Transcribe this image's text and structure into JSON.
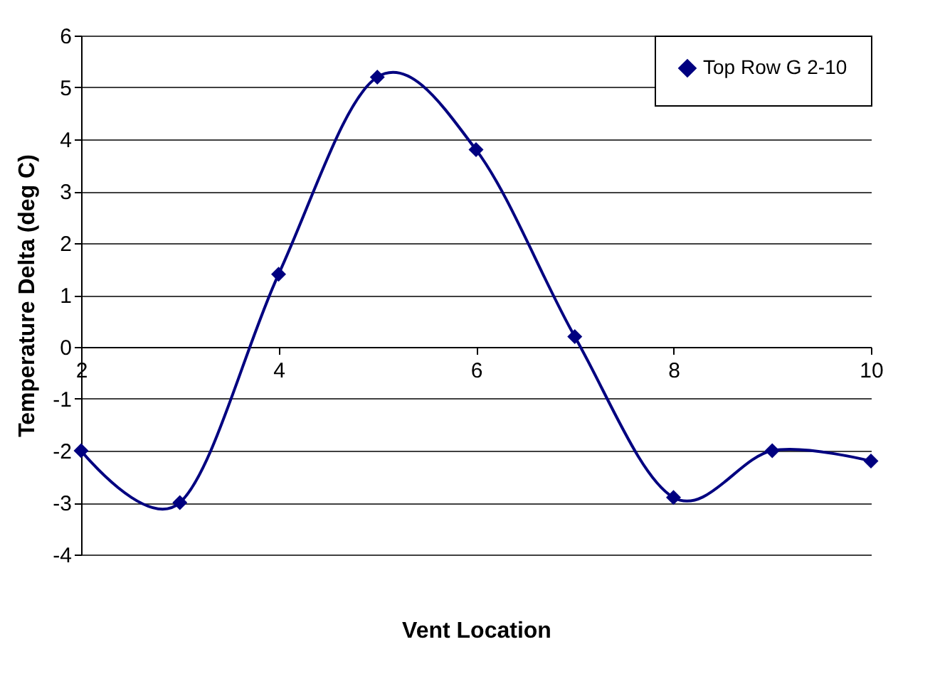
{
  "chart_data": {
    "type": "line",
    "xlabel": "Vent Location",
    "ylabel": "Temperature Delta (deg C)",
    "x": [
      2,
      3,
      4,
      5,
      6,
      7,
      8,
      9,
      10
    ],
    "series": [
      {
        "name": "Top Row G 2-10",
        "color": "#000080",
        "values": [
          -2,
          -3,
          1.4,
          5.2,
          3.8,
          0.2,
          -2.9,
          -2,
          -2.2
        ]
      }
    ],
    "xlim": [
      2,
      10
    ],
    "xticks": [
      2,
      4,
      6,
      8,
      10
    ],
    "ylim": [
      -4,
      6
    ],
    "yticks": [
      -4,
      -3,
      -2,
      -1,
      0,
      1,
      2,
      3,
      4,
      5,
      6
    ],
    "grid": "y",
    "legend": "top right",
    "marker": "diamond",
    "line_style": "solid"
  }
}
